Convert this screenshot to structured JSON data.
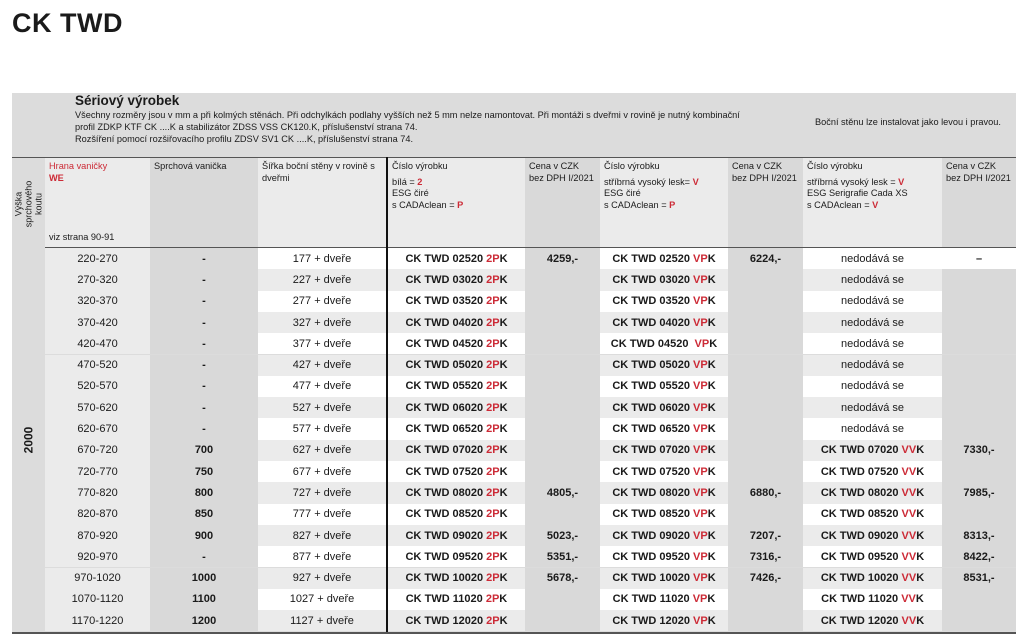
{
  "title": "CK TWD",
  "intro": {
    "heading": "Sériový výrobek",
    "line1": "Všechny rozměry jsou v mm a při kolmých stěnách. Při odchylkách podlahy vyšších než 5 mm nelze namontovat. Při montáži s dveřmi v rovině je nutný kombinační",
    "line2": "profil ZDKP KTF CK ....K  a stabilizátor ZDSS VSS CK120.K, příslušenství strana 74.",
    "line3": "Rozšíření pomocí rozšiřovacího profilu ZDSV SV1 CK ....K, příslušenství strana 74.",
    "side_note": "Boční stěnu lze instalovat jako levou i pravou."
  },
  "headers": {
    "height": "Výška sprchového koutu",
    "edge": "Hrana vaničky",
    "edge_code": "WE",
    "edge_ref": "viz strana 90-91",
    "tray": "Sprchová vanička",
    "width": "Šířka boční stěny v rovině s dveřmi",
    "prod1": {
      "title": "Číslo výrobku",
      "l1": "bílá = ",
      "l1c": "2",
      "l2": "ESG čiré",
      "l3": "s CADAclean = ",
      "l3c": "P"
    },
    "prod2": {
      "title": "Číslo výrobku",
      "l1": "stříbrná vysoký lesk= ",
      "l1c": "V",
      "l2": "ESG čiré",
      "l3": "s CADAclean = ",
      "l3c": "P"
    },
    "prod3": {
      "title": "Číslo výrobku",
      "l1": "stříbrná vysoký lesk = ",
      "l1c": "V",
      "l2": "ESG Serigrafie Cada XS",
      "l3": "s CADAclean = ",
      "l3c": "V"
    },
    "price": "Cena v CZK bez DPH I/2021"
  },
  "height_value": "2000",
  "colors": {
    "accent": "#cc2a36",
    "header_bg": "#dcdcdc",
    "row_alt": "#ebebeb"
  },
  "rows": [
    {
      "range": "220-270",
      "tray": "-",
      "width": "177 + dveře",
      "c1": [
        "CK TWD 02520 ",
        "2P",
        "K"
      ],
      "p1": "4259,-",
      "c2": [
        "CK TWD 02520 ",
        "VP",
        "K"
      ],
      "p2": "6224,-",
      "c3": "nedodává se",
      "p3": "–"
    },
    {
      "range": "270-320",
      "tray": "-",
      "width": "227 + dveře",
      "c1": [
        "CK TWD 03020 ",
        "2P",
        "K"
      ],
      "p1": "",
      "c2": [
        "CK TWD 03020 ",
        "VP",
        "K"
      ],
      "p2": "",
      "c3": "nedodává se",
      "p3": ""
    },
    {
      "range": "320-370",
      "tray": "-",
      "width": "277 + dveře",
      "c1": [
        "CK TWD 03520 ",
        "2P",
        "K"
      ],
      "p1": "",
      "c2": [
        "CK TWD 03520 ",
        "VP",
        "K"
      ],
      "p2": "",
      "c3": "nedodává se",
      "p3": ""
    },
    {
      "range": "370-420",
      "tray": "-",
      "width": "327 + dveře",
      "c1": [
        "CK TWD 04020 ",
        "2P",
        "K"
      ],
      "p1": "",
      "c2": [
        "CK TWD 04020 ",
        "VP",
        "K"
      ],
      "p2": "",
      "c3": "nedodává se",
      "p3": ""
    },
    {
      "range": "420-470",
      "tray": "-",
      "width": "377 + dveře",
      "c1": [
        "CK TWD 04520 ",
        "2P",
        "K"
      ],
      "p1": "",
      "c2": [
        "CK TWD 04520  ",
        "VP",
        "K"
      ],
      "p2": "",
      "c3": "nedodává se",
      "p3": ""
    },
    {
      "range": "470-520",
      "tray": "-",
      "width": "427 + dveře",
      "c1": [
        "CK TWD 05020 ",
        "2P",
        "K"
      ],
      "p1": "",
      "c2": [
        "CK TWD 05020 ",
        "VP",
        "K"
      ],
      "p2": "",
      "c3": "nedodává se",
      "p3": ""
    },
    {
      "range": "520-570",
      "tray": "-",
      "width": "477 + dveře",
      "c1": [
        "CK TWD 05520 ",
        "2P",
        "K"
      ],
      "p1": "",
      "c2": [
        "CK TWD 05520 ",
        "VP",
        "K"
      ],
      "p2": "",
      "c3": "nedodává se",
      "p3": ""
    },
    {
      "range": "570-620",
      "tray": "-",
      "width": "527 + dveře",
      "c1": [
        "CK TWD 06020 ",
        "2P",
        "K"
      ],
      "p1": "",
      "c2": [
        "CK TWD 06020 ",
        "VP",
        "K"
      ],
      "p2": "",
      "c3": "nedodává se",
      "p3": ""
    },
    {
      "range": "620-670",
      "tray": "-",
      "width": "577 + dveře",
      "c1": [
        "CK TWD 06520 ",
        "2P",
        "K"
      ],
      "p1": "",
      "c2": [
        "CK TWD 06520 ",
        "VP",
        "K"
      ],
      "p2": "",
      "c3": "nedodává se",
      "p3": ""
    },
    {
      "range": "670-720",
      "tray": "700",
      "width": "627 + dveře",
      "c1": [
        "CK TWD 07020 ",
        "2P",
        "K"
      ],
      "p1": "",
      "c2": [
        "CK TWD 07020 ",
        "VP",
        "K"
      ],
      "p2": "",
      "c3": [
        "CK TWD 07020 ",
        "VV",
        "K"
      ],
      "p3": "7330,-"
    },
    {
      "range": "720-770",
      "tray": "750",
      "width": "677 + dveře",
      "c1": [
        "CK TWD 07520 ",
        "2P",
        "K"
      ],
      "p1": "",
      "c2": [
        "CK TWD 07520 ",
        "VP",
        "K"
      ],
      "p2": "",
      "c3": [
        "CK TWD 07520 ",
        "VV",
        "K"
      ],
      "p3": ""
    },
    {
      "range": "770-820",
      "tray": "800",
      "width": "727 + dveře",
      "c1": [
        "CK TWD 08020 ",
        "2P",
        "K"
      ],
      "p1": "4805,-",
      "c2": [
        "CK TWD 08020 ",
        "VP",
        "K"
      ],
      "p2": "6880,-",
      "c3": [
        "CK TWD 08020 ",
        "VV",
        "K"
      ],
      "p3": "7985,-"
    },
    {
      "range": "820-870",
      "tray": "850",
      "width": "777 + dveře",
      "c1": [
        "CK TWD 08520 ",
        "2P",
        "K"
      ],
      "p1": "",
      "c2": [
        "CK TWD 08520 ",
        "VP",
        "K"
      ],
      "p2": "",
      "c3": [
        "CK TWD 08520 ",
        "VV",
        "K"
      ],
      "p3": ""
    },
    {
      "range": "870-920",
      "tray": "900",
      "width": "827 + dveře",
      "c1": [
        "CK TWD 09020 ",
        "2P",
        "K"
      ],
      "p1": "5023,-",
      "c2": [
        "CK TWD 09020 ",
        "VP",
        "K"
      ],
      "p2": "7207,-",
      "c3": [
        "CK TWD 09020 ",
        "VV",
        "K"
      ],
      "p3": "8313,-"
    },
    {
      "range": "920-970",
      "tray": "-",
      "width": "877 + dveře",
      "c1": [
        "CK TWD 09520 ",
        "2P",
        "K"
      ],
      "p1": "5351,-",
      "c2": [
        "CK TWD 09520 ",
        "VP",
        "K"
      ],
      "p2": "7316,-",
      "c3": [
        "CK TWD 09520 ",
        "VV",
        "K"
      ],
      "p3": "8422,-"
    },
    {
      "range": "970-1020",
      "tray": "1000",
      "width": "927 + dveře",
      "c1": [
        "CK TWD 10020 ",
        "2P",
        "K"
      ],
      "p1": "5678,-",
      "c2": [
        "CK TWD 10020 ",
        "VP",
        "K"
      ],
      "p2": "7426,-",
      "c3": [
        "CK TWD 10020 ",
        "VV",
        "K"
      ],
      "p3": "8531,-"
    },
    {
      "range": "1070-1120",
      "tray": "1100",
      "width": "1027 + dveře",
      "c1": [
        "CK TWD 11020 ",
        "2P",
        "K"
      ],
      "p1": "",
      "c2": [
        "CK TWD 11020 ",
        "VP",
        "K"
      ],
      "p2": "",
      "c3": [
        "CK TWD 11020 ",
        "VV",
        "K"
      ],
      "p3": ""
    },
    {
      "range": "1170-1220",
      "tray": "1200",
      "width": "1127 + dveře",
      "c1": [
        "CK TWD 12020 ",
        "2P",
        "K"
      ],
      "p1": "",
      "c2": [
        "CK TWD 12020 ",
        "VP",
        "K"
      ],
      "p2": "",
      "c3": [
        "CK TWD 12020 ",
        "VV",
        "K"
      ],
      "p3": ""
    }
  ]
}
